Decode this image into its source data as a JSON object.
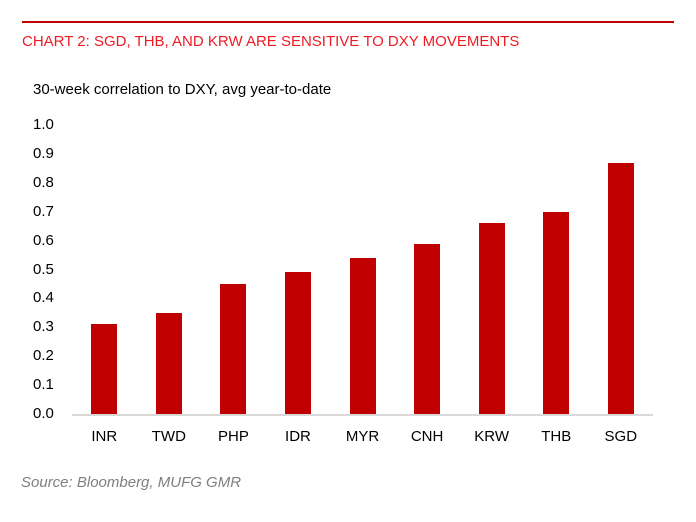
{
  "header": {
    "title": "CHART 2: SGD, THB, AND KRW ARE SENSITIVE TO DXY MOVEMENTS"
  },
  "chart_data": {
    "type": "bar",
    "title": "30-week correlation to DXY, avg year-to-date",
    "categories": [
      "INR",
      "TWD",
      "PHP",
      "IDR",
      "MYR",
      "CNH",
      "KRW",
      "THB",
      "SGD"
    ],
    "values": [
      0.31,
      0.35,
      0.45,
      0.49,
      0.54,
      0.59,
      0.66,
      0.7,
      0.87
    ],
    "xlabel": "",
    "ylabel": "",
    "ylim": [
      0.0,
      1.0
    ],
    "ytick_labels": [
      "1.0",
      "0.9",
      "0.8",
      "0.7",
      "0.6",
      "0.5",
      "0.4",
      "0.3",
      "0.2",
      "0.1",
      "0.0"
    ],
    "grid": false,
    "legend": null,
    "bar_color": "#c00000",
    "axis_line_color": "#d9d9d9"
  },
  "footer": {
    "source": "Source: Bloomberg, MUFG GMR"
  },
  "colors": {
    "title_red": "#ed1c24",
    "rule_red": "#c00000",
    "bar_red": "#c00000",
    "axis_gray": "#d9d9d9",
    "source_gray": "#7f7f7f",
    "background": "#ffffff"
  }
}
